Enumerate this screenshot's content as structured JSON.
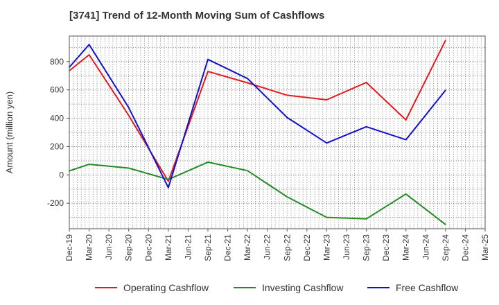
{
  "chart_data": {
    "type": "line",
    "title": "[3741]  Trend of 12-Month Moving Sum of Cashflows",
    "ylabel": "Amount (million yen)",
    "xlabel": "",
    "ylim": [
      -380,
      980
    ],
    "yticks": [
      -200,
      0,
      200,
      400,
      600,
      800
    ],
    "grid": true,
    "legend_position": "bottom",
    "categories": [
      "Dec-19",
      "Mar-20",
      "Jun-20",
      "Sep-20",
      "Dec-20",
      "Mar-21",
      "Jun-21",
      "Sep-21",
      "Dec-21",
      "Mar-22",
      "Jun-22",
      "Sep-22",
      "Dec-22",
      "Mar-23",
      "Jun-23",
      "Sep-23",
      "Dec-23",
      "Mar-24",
      "Jun-24",
      "Sep-24",
      "Dec-24",
      "Mar-25"
    ],
    "series": [
      {
        "name": "Operating Cashflow",
        "color": "#e31a1c",
        "values": [
          735,
          848,
          null,
          420,
          null,
          -45,
          null,
          730,
          null,
          650,
          null,
          562,
          null,
          530,
          null,
          652,
          null,
          388,
          null,
          950,
          null,
          null
        ]
      },
      {
        "name": "Investing Cashflow",
        "color": "#238b22",
        "values": [
          28,
          75,
          null,
          48,
          null,
          -32,
          null,
          90,
          null,
          30,
          null,
          -155,
          null,
          -300,
          null,
          -310,
          null,
          -135,
          null,
          -350,
          null,
          null
        ]
      },
      {
        "name": "Free Cashflow",
        "color": "#1111cc",
        "values": [
          760,
          920,
          null,
          475,
          null,
          -90,
          null,
          815,
          null,
          680,
          null,
          405,
          null,
          225,
          null,
          340,
          null,
          248,
          null,
          598,
          null,
          null
        ]
      }
    ]
  }
}
